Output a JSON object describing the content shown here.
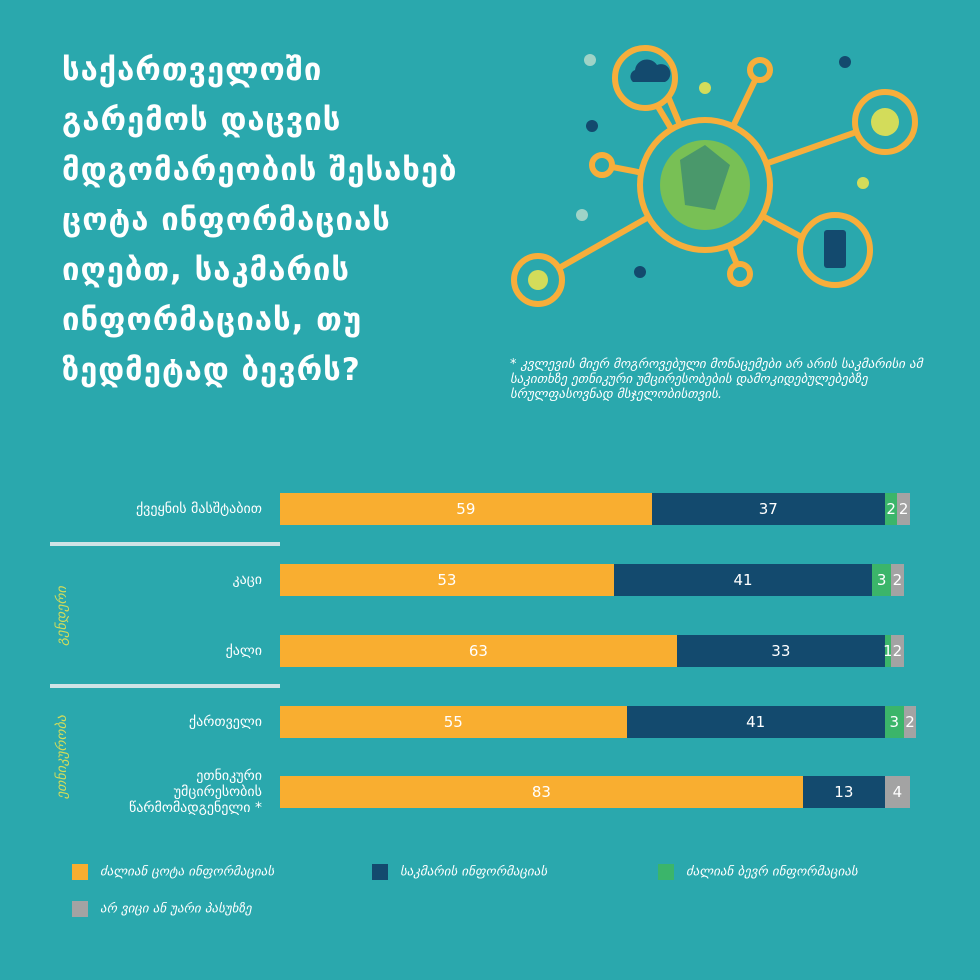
{
  "chart_data": {
    "type": "stacked-bar-horizontal",
    "title": [
      "საქართველოში",
      "გარემოს დაცვის",
      "მდგომარეობის შესახებ",
      "ცოტა ინფორმაციას",
      "იღებთ, საკმარის",
      "ინფორმაციას, თუ",
      "ზედმეტად ბევრს?"
    ],
    "note": "* კვლევის მიერ მოგროვებული მონაცემები არ არის საკმარისი ამ საკითხზე ეთნიკური უმცირესობების დამოკიდებულებებზე სრულფასოვნად მსჯელობისთვის.",
    "categories": [
      "ქვეყნის მასშტაბით",
      "კაცი",
      "ქალი",
      "ქართველი",
      "ეთნიკური უმცირესობის წარმომადგენელი *"
    ],
    "groups": [
      {
        "label": "გენდერი",
        "categories": [
          1,
          2
        ]
      },
      {
        "label": "ეთნიკურობა",
        "categories": [
          3,
          4
        ]
      }
    ],
    "xlim": [
      0,
      100
    ],
    "series": [
      {
        "name": "ძალიან ცოტა ინფორმაციას",
        "color": "#f9ae30",
        "values": [
          59,
          53,
          63,
          55,
          83
        ]
      },
      {
        "name": "საკმარის ინფორმაციას",
        "color": "#134a6e",
        "values": [
          37,
          41,
          33,
          41,
          13
        ]
      },
      {
        "name": "ძალიან ბევრ ინფორმაციას",
        "color": "#3bb56a",
        "values": [
          2,
          3,
          1,
          3,
          null
        ]
      },
      {
        "name": "არ ვიცი ან უარი პასუხზე",
        "color": "#a3a3a3",
        "values": [
          2,
          2,
          2,
          2,
          4
        ]
      }
    ]
  }
}
